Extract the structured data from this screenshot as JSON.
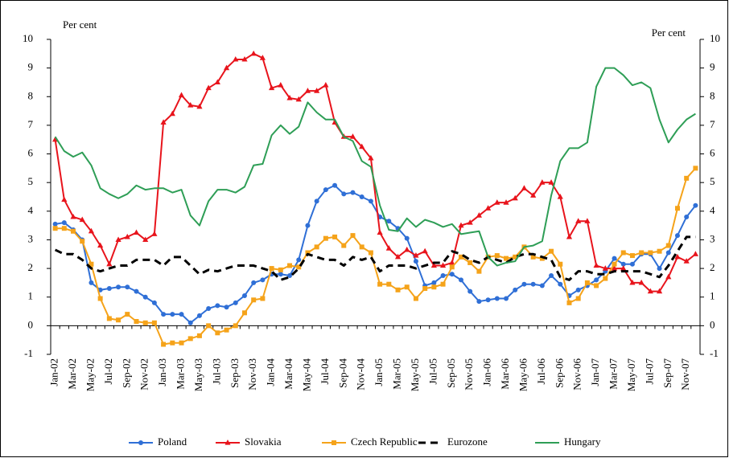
{
  "chart_data": {
    "type": "line",
    "y_label": "Per cent",
    "y2_label": "Per cent",
    "categories": [
      "Jan-02",
      null,
      "Mar-02",
      null,
      "May-02",
      null,
      "Jul-02",
      null,
      "Sep-02",
      null,
      "Nov-02",
      null,
      "Jan-03",
      null,
      "Mar-03",
      null,
      "May-03",
      null,
      "Jul-03",
      null,
      "Sep-03",
      null,
      "Nov-03",
      null,
      "Jan-04",
      null,
      "Mar-04",
      null,
      "May-04",
      null,
      "Jul-04",
      null,
      "Sep-04",
      null,
      "Nov-04",
      null,
      "Jan-05",
      null,
      "Mar-05",
      null,
      "May-05",
      null,
      "Jul-05",
      null,
      "Sep-05",
      null,
      "Nov-05",
      null,
      "Jan-06",
      null,
      "Mar-06",
      null,
      "May-06",
      null,
      "Jul-06",
      null,
      "Sep-06",
      null,
      "Nov-06",
      null,
      "Jan-07",
      null,
      "Mar-07",
      null,
      "May-07",
      null,
      "Jul-07",
      null,
      "Sep-07",
      null,
      "Nov-07",
      null
    ],
    "series": [
      {
        "name": "Poland",
        "color": "#2f6fd6",
        "marker": "circle",
        "values": [
          3.55,
          3.6,
          3.35,
          3.0,
          1.5,
          1.25,
          1.3,
          1.35,
          1.35,
          1.2,
          1.0,
          0.8,
          0.4,
          0.4,
          0.4,
          0.1,
          0.35,
          0.6,
          0.7,
          0.65,
          0.8,
          1.05,
          1.5,
          1.6,
          1.8,
          1.8,
          1.75,
          2.3,
          3.5,
          4.35,
          4.75,
          4.9,
          4.6,
          4.65,
          4.5,
          4.35,
          3.8,
          3.65,
          3.4,
          3.05,
          2.25,
          1.4,
          1.5,
          1.75,
          1.8,
          1.6,
          1.2,
          0.85,
          0.9,
          0.95,
          0.95,
          1.25,
          1.45,
          1.45,
          1.4,
          1.75,
          1.45,
          1.05,
          1.25,
          1.4,
          1.6,
          1.9,
          2.35,
          2.15,
          2.15,
          2.5,
          2.5,
          2.0,
          2.55,
          3.15,
          3.8,
          4.2
        ]
      },
      {
        "name": "Slovakia",
        "color": "#e8141c",
        "marker": "triangle",
        "values": [
          6.5,
          4.4,
          3.8,
          3.7,
          3.3,
          2.8,
          2.15,
          3.0,
          3.1,
          3.25,
          3.0,
          3.2,
          7.1,
          7.4,
          8.05,
          7.7,
          7.65,
          8.3,
          8.5,
          9.0,
          9.3,
          9.3,
          9.5,
          9.35,
          8.3,
          8.4,
          7.95,
          7.9,
          8.2,
          8.2,
          8.4,
          7.1,
          6.6,
          6.6,
          6.25,
          5.85,
          3.25,
          2.7,
          2.4,
          2.65,
          2.45,
          2.6,
          2.1,
          2.1,
          2.2,
          3.5,
          3.6,
          3.85,
          4.1,
          4.3,
          4.3,
          4.45,
          4.8,
          4.55,
          5.0,
          5.0,
          4.5,
          3.1,
          3.65,
          3.65,
          2.1,
          2.0,
          2.0,
          2.0,
          1.5,
          1.5,
          1.2,
          1.2,
          1.7,
          2.4,
          2.25,
          2.5
        ]
      },
      {
        "name": "Czech Republic",
        "color": "#f5a31a",
        "marker": "square",
        "values": [
          3.4,
          3.4,
          3.3,
          2.95,
          2.15,
          0.95,
          0.25,
          0.2,
          0.4,
          0.15,
          0.1,
          0.1,
          -0.65,
          -0.6,
          -0.6,
          -0.45,
          -0.35,
          0.0,
          -0.25,
          -0.15,
          0.0,
          0.45,
          0.9,
          0.95,
          2.0,
          1.95,
          2.1,
          2.05,
          2.55,
          2.75,
          3.05,
          3.1,
          2.8,
          3.15,
          2.75,
          2.55,
          1.45,
          1.45,
          1.25,
          1.35,
          0.95,
          1.3,
          1.35,
          1.45,
          2.05,
          2.4,
          2.2,
          1.9,
          2.4,
          2.45,
          2.35,
          2.4,
          2.75,
          2.4,
          2.35,
          2.6,
          2.15,
          0.8,
          0.95,
          1.5,
          1.4,
          1.65,
          2.15,
          2.55,
          2.45,
          2.55,
          2.55,
          2.6,
          2.8,
          4.1,
          5.15,
          5.5
        ]
      },
      {
        "name": "Eurozone",
        "color": "#000000",
        "dash": true,
        "values": [
          2.65,
          2.5,
          2.5,
          2.3,
          2.0,
          1.9,
          2.0,
          2.1,
          2.1,
          2.3,
          2.3,
          2.3,
          2.1,
          2.4,
          2.4,
          2.1,
          1.8,
          1.95,
          1.9,
          2.0,
          2.1,
          2.1,
          2.1,
          2.0,
          1.9,
          1.6,
          1.7,
          2.0,
          2.5,
          2.4,
          2.3,
          2.3,
          2.1,
          2.4,
          2.3,
          2.4,
          1.9,
          2.1,
          2.1,
          2.1,
          2.0,
          2.1,
          2.2,
          2.2,
          2.6,
          2.5,
          2.3,
          2.2,
          2.4,
          2.3,
          2.2,
          2.4,
          2.5,
          2.5,
          2.4,
          2.3,
          1.7,
          1.6,
          1.9,
          1.9,
          1.8,
          1.8,
          1.9,
          1.9,
          1.9,
          1.9,
          1.8,
          1.7,
          2.1,
          2.6,
          3.1,
          3.1
        ]
      },
      {
        "name": "Hungary",
        "color": "#2e9e56",
        "values": [
          6.6,
          6.1,
          5.9,
          6.05,
          5.6,
          4.8,
          4.6,
          4.45,
          4.6,
          4.9,
          4.75,
          4.8,
          4.8,
          4.65,
          4.75,
          3.85,
          3.5,
          4.35,
          4.75,
          4.75,
          4.65,
          4.85,
          5.6,
          5.65,
          6.65,
          7.0,
          6.7,
          6.95,
          7.8,
          7.45,
          7.2,
          7.2,
          6.6,
          6.45,
          5.75,
          5.55,
          4.2,
          3.35,
          3.3,
          3.75,
          3.45,
          3.7,
          3.6,
          3.45,
          3.55,
          3.2,
          3.25,
          3.3,
          2.4,
          2.1,
          2.2,
          2.25,
          2.75,
          2.8,
          2.95,
          4.55,
          5.75,
          6.2,
          6.2,
          6.4,
          8.35,
          9.0,
          9.0,
          8.75,
          8.4,
          8.5,
          8.3,
          7.2,
          6.4,
          6.85,
          7.2,
          7.4
        ]
      }
    ],
    "ylim": [
      -1,
      10
    ],
    "yticks": [
      -1,
      0,
      1,
      2,
      3,
      4,
      5,
      6,
      7,
      8,
      9,
      10
    ],
    "y2lim": [
      -1,
      10
    ],
    "y2ticks": [
      -1,
      0,
      1,
      2,
      3,
      4,
      5,
      6,
      7,
      8,
      9,
      10
    ],
    "legend": "bottom"
  }
}
